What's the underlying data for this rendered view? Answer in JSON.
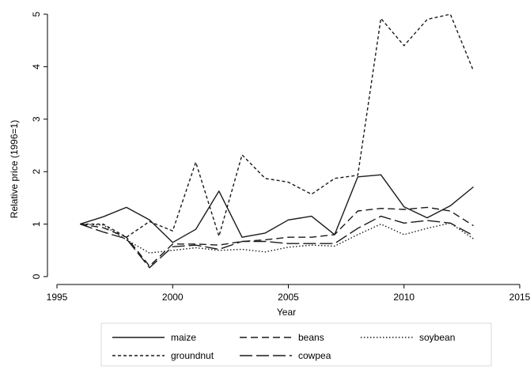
{
  "chart_data": {
    "type": "line",
    "xlabel": "Year",
    "ylabel": "Relative price (1996=1)",
    "xlim": [
      1995,
      2015
    ],
    "ylim": [
      0,
      5
    ],
    "x_ticks": [
      "1995",
      "2000",
      "2005",
      "2010",
      "2015"
    ],
    "y_ticks": [
      "0",
      "1",
      "2",
      "3",
      "4",
      "5"
    ],
    "grid": false,
    "legend_position": "bottom",
    "x": [
      1996,
      1997,
      1998,
      1999,
      2000,
      2001,
      2002,
      2003,
      2004,
      2005,
      2006,
      2007,
      2008,
      2009,
      2010,
      2011,
      2012,
      2013
    ],
    "series": [
      {
        "name": "maize",
        "dash": "solid",
        "values": [
          1.0,
          1.14,
          1.32,
          1.08,
          0.65,
          0.9,
          1.63,
          0.75,
          0.83,
          1.08,
          1.15,
          0.8,
          1.9,
          1.94,
          1.33,
          1.12,
          1.35,
          1.71
        ]
      },
      {
        "name": "beans",
        "dash": "dash",
        "values": [
          1.0,
          0.93,
          0.75,
          0.2,
          0.62,
          0.62,
          0.6,
          0.67,
          0.7,
          0.75,
          0.75,
          0.8,
          1.25,
          1.3,
          1.28,
          1.32,
          1.25,
          0.97
        ]
      },
      {
        "name": "soybean",
        "dash": "dot",
        "values": [
          1.0,
          0.98,
          0.7,
          0.45,
          0.5,
          0.55,
          0.5,
          0.52,
          0.47,
          0.56,
          0.6,
          0.58,
          0.8,
          1.0,
          0.8,
          0.92,
          1.02,
          0.72
        ]
      },
      {
        "name": "groundnut",
        "dash": "shortdash",
        "values": [
          1.0,
          1.0,
          0.75,
          1.05,
          0.87,
          2.18,
          0.77,
          2.32,
          1.87,
          1.8,
          1.57,
          1.87,
          1.93,
          4.92,
          4.4,
          4.9,
          5.0,
          3.92
        ]
      },
      {
        "name": "cowpea",
        "dash": "longdash",
        "values": [
          1.0,
          0.85,
          0.72,
          0.17,
          0.57,
          0.6,
          0.52,
          0.67,
          0.67,
          0.63,
          0.63,
          0.63,
          0.92,
          1.15,
          1.02,
          1.07,
          1.02,
          0.78
        ]
      }
    ]
  }
}
